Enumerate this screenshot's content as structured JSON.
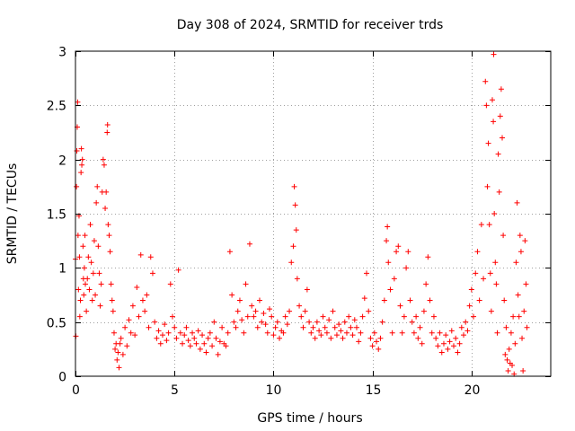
{
  "chart_data": {
    "type": "scatter",
    "title": "Day 308 of 2024, SRMTID for receiver trds",
    "xlabel": "GPS time / hours",
    "ylabel": "SRMTID / TECUs",
    "xlim": [
      0,
      24
    ],
    "ylim": [
      0,
      3
    ],
    "xticks": [
      0,
      5,
      10,
      15,
      20
    ],
    "yticks": [
      0,
      0.5,
      1,
      1.5,
      2,
      2.5,
      3
    ],
    "xtick_labels": [
      "0",
      "5",
      "10",
      "15",
      "20"
    ],
    "ytick_labels": [
      "0",
      "0.5",
      "1",
      "1.5",
      "2",
      "2.5",
      "3"
    ],
    "grid": true,
    "marker": "+",
    "color": "#ff0000",
    "series": [
      {
        "name": "SRMTID",
        "points": [
          [
            0.0,
            1.08
          ],
          [
            0.02,
            0.37
          ],
          [
            0.05,
            1.75
          ],
          [
            0.07,
            2.08
          ],
          [
            0.09,
            2.3
          ],
          [
            0.11,
            2.53
          ],
          [
            0.13,
            1.3
          ],
          [
            0.15,
            0.8
          ],
          [
            0.18,
            1.48
          ],
          [
            0.2,
            1.1
          ],
          [
            0.22,
            0.55
          ],
          [
            0.25,
            0.7
          ],
          [
            0.28,
            1.88
          ],
          [
            0.3,
            2.1
          ],
          [
            0.32,
            1.95
          ],
          [
            0.35,
            2.0
          ],
          [
            0.38,
            1.2
          ],
          [
            0.4,
            0.9
          ],
          [
            0.42,
            0.75
          ],
          [
            0.45,
            1.0
          ],
          [
            0.48,
            1.3
          ],
          [
            0.5,
            0.85
          ],
          [
            0.55,
            0.6
          ],
          [
            0.6,
            0.9
          ],
          [
            0.65,
            1.1
          ],
          [
            0.7,
            0.8
          ],
          [
            0.75,
            1.4
          ],
          [
            0.8,
            1.05
          ],
          [
            0.85,
            0.7
          ],
          [
            0.9,
            0.95
          ],
          [
            0.95,
            1.25
          ],
          [
            1.0,
            0.75
          ],
          [
            1.05,
            1.6
          ],
          [
            1.1,
            1.75
          ],
          [
            1.15,
            1.2
          ],
          [
            1.2,
            0.95
          ],
          [
            1.25,
            0.65
          ],
          [
            1.3,
            0.85
          ],
          [
            1.35,
            1.7
          ],
          [
            1.4,
            2.0
          ],
          [
            1.45,
            1.95
          ],
          [
            1.5,
            1.55
          ],
          [
            1.55,
            1.7
          ],
          [
            1.6,
            2.25
          ],
          [
            1.62,
            2.32
          ],
          [
            1.65,
            1.4
          ],
          [
            1.7,
            1.3
          ],
          [
            1.75,
            1.15
          ],
          [
            1.8,
            0.85
          ],
          [
            1.85,
            0.7
          ],
          [
            1.9,
            0.6
          ],
          [
            1.95,
            0.4
          ],
          [
            2.0,
            0.25
          ],
          [
            2.05,
            0.3
          ],
          [
            2.1,
            0.15
          ],
          [
            2.15,
            0.22
          ],
          [
            2.2,
            0.08
          ],
          [
            2.25,
            0.3
          ],
          [
            2.3,
            0.35
          ],
          [
            2.4,
            0.2
          ],
          [
            2.5,
            0.45
          ],
          [
            2.6,
            0.28
          ],
          [
            2.7,
            0.52
          ],
          [
            2.8,
            0.4
          ],
          [
            2.9,
            0.65
          ],
          [
            3.0,
            0.38
          ],
          [
            3.1,
            0.82
          ],
          [
            3.2,
            0.55
          ],
          [
            3.3,
            1.12
          ],
          [
            3.4,
            0.7
          ],
          [
            3.5,
            0.6
          ],
          [
            3.6,
            0.75
          ],
          [
            3.7,
            0.45
          ],
          [
            3.8,
            1.1
          ],
          [
            3.9,
            0.95
          ],
          [
            4.0,
            0.5
          ],
          [
            4.1,
            0.35
          ],
          [
            4.2,
            0.42
          ],
          [
            4.3,
            0.3
          ],
          [
            4.4,
            0.38
          ],
          [
            4.5,
            0.48
          ],
          [
            4.6,
            0.33
          ],
          [
            4.7,
            0.4
          ],
          [
            4.8,
            0.85
          ],
          [
            4.9,
            0.55
          ],
          [
            5.0,
            0.45
          ],
          [
            5.1,
            0.35
          ],
          [
            5.2,
            0.98
          ],
          [
            5.3,
            0.4
          ],
          [
            5.4,
            0.3
          ],
          [
            5.5,
            0.38
          ],
          [
            5.6,
            0.45
          ],
          [
            5.7,
            0.33
          ],
          [
            5.8,
            0.28
          ],
          [
            5.9,
            0.4
          ],
          [
            6.0,
            0.35
          ],
          [
            6.1,
            0.3
          ],
          [
            6.2,
            0.42
          ],
          [
            6.3,
            0.25
          ],
          [
            6.4,
            0.38
          ],
          [
            6.5,
            0.3
          ],
          [
            6.6,
            0.22
          ],
          [
            6.7,
            0.35
          ],
          [
            6.8,
            0.4
          ],
          [
            6.9,
            0.28
          ],
          [
            7.0,
            0.5
          ],
          [
            7.1,
            0.35
          ],
          [
            7.2,
            0.2
          ],
          [
            7.3,
            0.32
          ],
          [
            7.4,
            0.45
          ],
          [
            7.5,
            0.3
          ],
          [
            7.6,
            0.28
          ],
          [
            7.7,
            0.4
          ],
          [
            7.8,
            1.15
          ],
          [
            7.9,
            0.75
          ],
          [
            8.0,
            0.5
          ],
          [
            8.1,
            0.45
          ],
          [
            8.2,
            0.6
          ],
          [
            8.3,
            0.7
          ],
          [
            8.4,
            0.52
          ],
          [
            8.5,
            0.4
          ],
          [
            8.6,
            0.85
          ],
          [
            8.7,
            0.55
          ],
          [
            8.8,
            1.22
          ],
          [
            8.9,
            0.65
          ],
          [
            9.0,
            0.55
          ],
          [
            9.1,
            0.6
          ],
          [
            9.2,
            0.45
          ],
          [
            9.3,
            0.7
          ],
          [
            9.4,
            0.5
          ],
          [
            9.5,
            0.58
          ],
          [
            9.6,
            0.48
          ],
          [
            9.7,
            0.4
          ],
          [
            9.8,
            0.62
          ],
          [
            9.9,
            0.55
          ],
          [
            10.0,
            0.38
          ],
          [
            10.1,
            0.45
          ],
          [
            10.2,
            0.5
          ],
          [
            10.3,
            0.35
          ],
          [
            10.4,
            0.42
          ],
          [
            10.5,
            0.4
          ],
          [
            10.6,
            0.55
          ],
          [
            10.7,
            0.48
          ],
          [
            10.8,
            0.6
          ],
          [
            10.9,
            1.05
          ],
          [
            11.0,
            1.2
          ],
          [
            11.05,
            1.75
          ],
          [
            11.1,
            1.58
          ],
          [
            11.15,
            1.35
          ],
          [
            11.2,
            0.9
          ],
          [
            11.3,
            0.65
          ],
          [
            11.4,
            0.55
          ],
          [
            11.5,
            0.45
          ],
          [
            11.6,
            0.6
          ],
          [
            11.7,
            0.8
          ],
          [
            11.8,
            0.5
          ],
          [
            11.9,
            0.4
          ],
          [
            12.0,
            0.45
          ],
          [
            12.1,
            0.35
          ],
          [
            12.2,
            0.5
          ],
          [
            12.3,
            0.42
          ],
          [
            12.4,
            0.38
          ],
          [
            12.5,
            0.55
          ],
          [
            12.6,
            0.45
          ],
          [
            12.7,
            0.4
          ],
          [
            12.8,
            0.52
          ],
          [
            12.9,
            0.35
          ],
          [
            13.0,
            0.6
          ],
          [
            13.1,
            0.45
          ],
          [
            13.2,
            0.38
          ],
          [
            13.3,
            0.48
          ],
          [
            13.4,
            0.42
          ],
          [
            13.5,
            0.35
          ],
          [
            13.6,
            0.5
          ],
          [
            13.7,
            0.4
          ],
          [
            13.8,
            0.55
          ],
          [
            13.9,
            0.45
          ],
          [
            14.0,
            0.38
          ],
          [
            14.1,
            0.52
          ],
          [
            14.2,
            0.45
          ],
          [
            14.3,
            0.32
          ],
          [
            14.4,
            0.4
          ],
          [
            14.5,
            0.55
          ],
          [
            14.6,
            0.72
          ],
          [
            14.7,
            0.95
          ],
          [
            14.8,
            0.6
          ],
          [
            14.9,
            0.35
          ],
          [
            15.0,
            0.28
          ],
          [
            15.1,
            0.4
          ],
          [
            15.2,
            0.32
          ],
          [
            15.3,
            0.25
          ],
          [
            15.4,
            0.35
          ],
          [
            15.5,
            0.5
          ],
          [
            15.6,
            0.7
          ],
          [
            15.7,
            1.25
          ],
          [
            15.75,
            1.38
          ],
          [
            15.8,
            1.05
          ],
          [
            15.9,
            0.8
          ],
          [
            16.0,
            0.4
          ],
          [
            16.1,
            0.9
          ],
          [
            16.2,
            1.15
          ],
          [
            16.3,
            1.2
          ],
          [
            16.4,
            0.65
          ],
          [
            16.5,
            0.4
          ],
          [
            16.6,
            0.55
          ],
          [
            16.7,
            1.0
          ],
          [
            16.8,
            1.15
          ],
          [
            16.9,
            0.7
          ],
          [
            17.0,
            0.5
          ],
          [
            17.1,
            0.4
          ],
          [
            17.2,
            0.55
          ],
          [
            17.3,
            0.35
          ],
          [
            17.4,
            0.45
          ],
          [
            17.5,
            0.3
          ],
          [
            17.6,
            0.6
          ],
          [
            17.7,
            0.85
          ],
          [
            17.8,
            1.1
          ],
          [
            17.9,
            0.7
          ],
          [
            18.0,
            0.4
          ],
          [
            18.1,
            0.55
          ],
          [
            18.2,
            0.35
          ],
          [
            18.3,
            0.28
          ],
          [
            18.4,
            0.4
          ],
          [
            18.5,
            0.22
          ],
          [
            18.6,
            0.3
          ],
          [
            18.7,
            0.38
          ],
          [
            18.8,
            0.25
          ],
          [
            18.9,
            0.32
          ],
          [
            19.0,
            0.42
          ],
          [
            19.1,
            0.28
          ],
          [
            19.2,
            0.35
          ],
          [
            19.3,
            0.22
          ],
          [
            19.4,
            0.3
          ],
          [
            19.5,
            0.45
          ],
          [
            19.6,
            0.38
          ],
          [
            19.7,
            0.5
          ],
          [
            19.8,
            0.42
          ],
          [
            19.9,
            0.65
          ],
          [
            20.0,
            0.8
          ],
          [
            20.1,
            0.55
          ],
          [
            20.2,
            0.95
          ],
          [
            20.3,
            1.15
          ],
          [
            20.4,
            0.7
          ],
          [
            20.5,
            1.4
          ],
          [
            20.6,
            0.9
          ],
          [
            20.7,
            2.72
          ],
          [
            20.75,
            2.5
          ],
          [
            20.8,
            1.75
          ],
          [
            20.85,
            2.15
          ],
          [
            20.9,
            1.4
          ],
          [
            20.95,
            0.95
          ],
          [
            21.0,
            0.6
          ],
          [
            21.05,
            2.55
          ],
          [
            21.1,
            2.35
          ],
          [
            21.12,
            2.97
          ],
          [
            21.15,
            1.5
          ],
          [
            21.2,
            1.05
          ],
          [
            21.25,
            0.85
          ],
          [
            21.3,
            0.4
          ],
          [
            21.35,
            2.05
          ],
          [
            21.4,
            1.7
          ],
          [
            21.45,
            2.4
          ],
          [
            21.5,
            2.65
          ],
          [
            21.55,
            2.2
          ],
          [
            21.6,
            1.3
          ],
          [
            21.65,
            0.7
          ],
          [
            21.7,
            0.2
          ],
          [
            21.75,
            0.45
          ],
          [
            21.8,
            0.15
          ],
          [
            21.85,
            0.05
          ],
          [
            21.9,
            0.25
          ],
          [
            21.95,
            0.12
          ],
          [
            22.0,
            0.4
          ],
          [
            22.05,
            0.1
          ],
          [
            22.1,
            0.55
          ],
          [
            22.15,
            0.02
          ],
          [
            22.2,
            0.3
          ],
          [
            22.25,
            1.05
          ],
          [
            22.3,
            1.6
          ],
          [
            22.35,
            0.75
          ],
          [
            22.4,
            0.55
          ],
          [
            22.45,
            1.3
          ],
          [
            22.5,
            1.15
          ],
          [
            22.55,
            0.35
          ],
          [
            22.6,
            0.05
          ],
          [
            22.65,
            0.6
          ],
          [
            22.7,
            1.25
          ],
          [
            22.75,
            0.85
          ],
          [
            22.8,
            0.45
          ]
        ]
      }
    ]
  }
}
